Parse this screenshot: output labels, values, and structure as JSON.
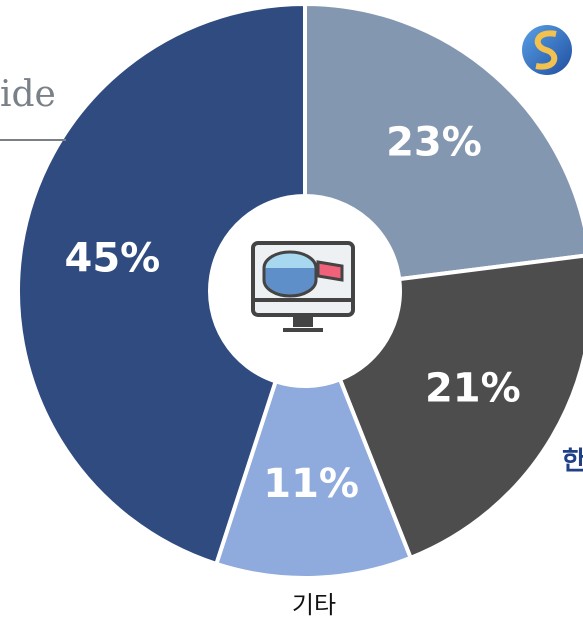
{
  "chart_data": {
    "type": "donut",
    "categories": [
      null,
      null,
      "기타",
      null
    ],
    "values": [
      23,
      21,
      11,
      45
    ],
    "value_labels": [
      "23%",
      "21%",
      "11%",
      "45%"
    ],
    "colors": [
      "#8497b0",
      "#4d4d4d",
      "#8faadc",
      "#2f4b80"
    ],
    "annotations": [
      "ide",
      "한"
    ]
  }
}
